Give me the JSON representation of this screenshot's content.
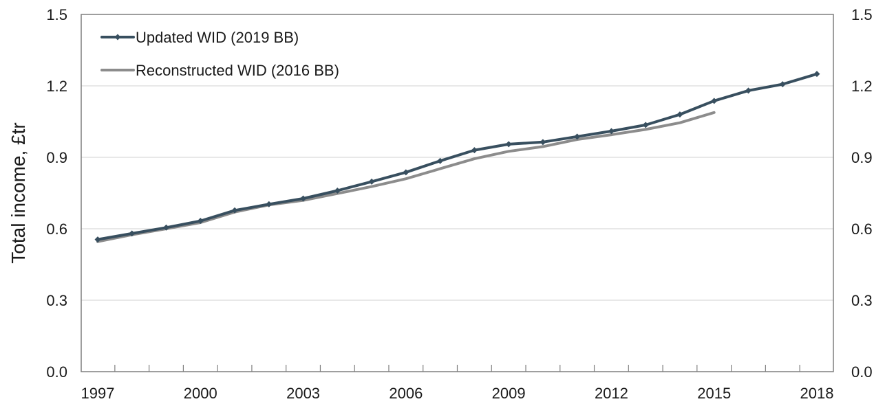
{
  "chart_data": {
    "type": "line",
    "ylabel": "Total income, £tr",
    "ylim": [
      0,
      1.5
    ],
    "yticks": [
      "0.0",
      "0.3",
      "0.6",
      "0.9",
      "1.2",
      "1.5"
    ],
    "y2ticks": [
      "0.0",
      "0.3",
      "0.6",
      "0.9",
      "1.2",
      "1.5"
    ],
    "xlim": [
      1997,
      2018
    ],
    "xticks": [
      "1997",
      "2000",
      "2003",
      "2006",
      "2009",
      "2012",
      "2015",
      "2018"
    ],
    "grid": true,
    "legend_position": "top-left",
    "series": [
      {
        "name": "Updated WID (2019 BB)",
        "color": "#384f5f",
        "marker": "diamond",
        "x": [
          1997,
          1998,
          1999,
          2000,
          2001,
          2002,
          2003,
          2004,
          2005,
          2006,
          2007,
          2008,
          2009,
          2010,
          2011,
          2012,
          2013,
          2014,
          2015,
          2016,
          2017,
          2018
        ],
        "values": [
          0.555,
          0.58,
          0.605,
          0.633,
          0.677,
          0.703,
          0.727,
          0.76,
          0.798,
          0.837,
          0.885,
          0.93,
          0.955,
          0.964,
          0.987,
          1.01,
          1.036,
          1.08,
          1.137,
          1.18,
          1.207,
          1.25
        ]
      },
      {
        "name": "Reconstructed WID (2016 BB)",
        "color": "#8c8c8c",
        "marker": "none",
        "x": [
          1997,
          1998,
          1999,
          2000,
          2001,
          2002,
          2003,
          2004,
          2005,
          2006,
          2007,
          2008,
          2009,
          2010,
          2011,
          2012,
          2013,
          2014,
          2015
        ],
        "values": [
          0.546,
          0.575,
          0.6,
          0.626,
          0.67,
          0.7,
          0.719,
          0.748,
          0.777,
          0.81,
          0.852,
          0.894,
          0.925,
          0.945,
          0.975,
          0.995,
          1.017,
          1.045,
          1.088
        ]
      }
    ]
  }
}
